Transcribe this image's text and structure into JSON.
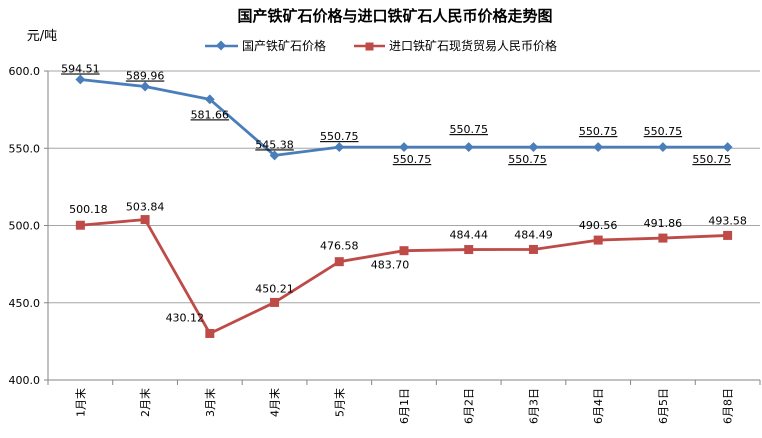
{
  "chart_data": {
    "type": "line",
    "title": "国产铁矿石价格与进口铁矿石人民币价格走势图",
    "ylabel": "元/吨",
    "ylim": [
      400,
      600
    ],
    "yticks": [
      "400.0",
      "450.0",
      "500.0",
      "550.0",
      "600.0"
    ],
    "categories": [
      "1月末",
      "2月末",
      "3月末",
      "4月末",
      "5月末",
      "6月1日",
      "6月2日",
      "6月3日",
      "6月4日",
      "6月5日",
      "6月8日"
    ],
    "grid": "horizontal",
    "legend": "top",
    "series": [
      {
        "name": "国产铁矿石价格",
        "color": "#4a7ebb",
        "marker": "diamond",
        "values": [
          594.51,
          589.96,
          581.66,
          545.38,
          550.75,
          550.75,
          550.75,
          550.75,
          550.75,
          550.75,
          550.75
        ],
        "labels": [
          "594.51",
          "589.96",
          "581.66",
          "545.38",
          "550.75",
          "550.75",
          "550.75",
          "550.75",
          "550.75",
          "550.75",
          "550.75"
        ]
      },
      {
        "name": "进口铁矿石现货贸易人民币价格",
        "color": "#be4b48",
        "marker": "square",
        "values": [
          500.18,
          503.84,
          430.12,
          450.21,
          476.58,
          483.7,
          484.44,
          484.49,
          490.56,
          491.86,
          493.58
        ],
        "labels": [
          "500.18",
          "503.84",
          "430.12",
          "450.21",
          "476.58",
          "483.70",
          "484.44",
          "484.49",
          "490.56",
          "491.86",
          "493.58"
        ]
      }
    ]
  }
}
